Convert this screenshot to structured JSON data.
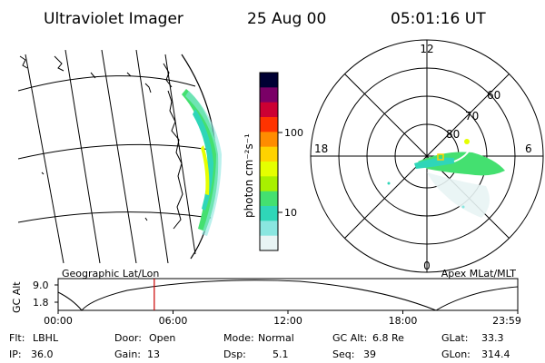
{
  "header": {
    "instrument": "Ultraviolet Imager",
    "date": "25 Aug 00",
    "time": "05:01:16 UT"
  },
  "colorbar": {
    "unit_label": "photon cm⁻²s⁻¹",
    "ticks": [
      "100",
      "10"
    ],
    "scale": "log",
    "colors": [
      "#000033",
      "#7a0066",
      "#cc0033",
      "#ff3300",
      "#ff8c00",
      "#ffd200",
      "#e5ff00",
      "#a8f000",
      "#44e070",
      "#2fd6b8",
      "#8ae6e0",
      "#e8f4f4"
    ]
  },
  "polar_plot": {
    "mlt_labels": {
      "top": "12",
      "left": "18",
      "right": "6",
      "bottom": "0"
    },
    "lat_labels": [
      "60",
      "70",
      "80"
    ]
  },
  "timeline": {
    "ylabel": "GC Alt",
    "ytick_high": "9.0",
    "ytick_low": "1.8",
    "left_title": "Geographic Lat/Lon",
    "right_title": "Apex MLat/MLT",
    "xticks": [
      "00:00",
      "06:00",
      "12:00",
      "18:00",
      "23:59"
    ],
    "marker_time_hours": 5.02,
    "marker_color": "#cc0000"
  },
  "info": {
    "flt_label": "Flt:",
    "flt_value": "LBHL",
    "ip_label": "IP:",
    "ip_value": "36.0",
    "door_label": "Door:",
    "door_value": "Open",
    "gain_label": "Gain:",
    "gain_value": "13",
    "mode_label": "Mode:",
    "mode_value": "Normal",
    "dsp_label": "Dsp:",
    "dsp_value": "5.1",
    "gcalt_label": "GC Alt:",
    "gcalt_value": "6.8 Re",
    "seq_label": "Seq:",
    "seq_value": "39",
    "glat_label": "GLat:",
    "glat_value": "33.3",
    "glon_label": "GLon:",
    "glon_value": "314.4"
  }
}
